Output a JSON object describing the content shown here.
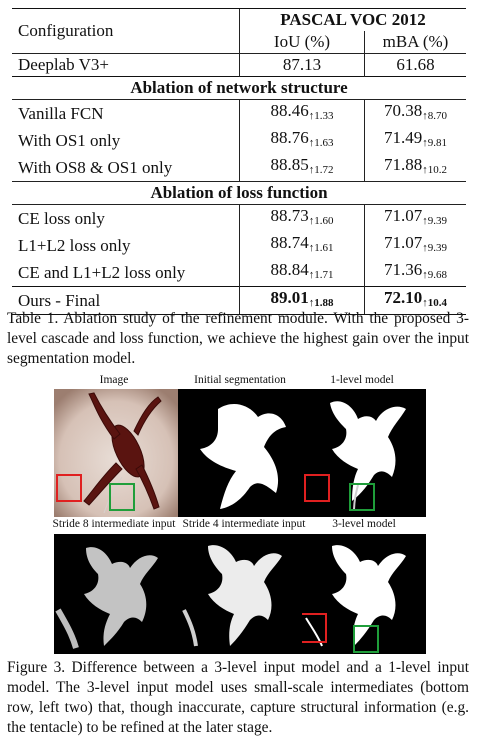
{
  "table": {
    "header": {
      "config": "Configuration",
      "dataset": "PASCAL VOC 2012",
      "iou": "IoU (%)",
      "mba": "mBA (%)"
    },
    "baseline": {
      "name": "Deeplab V3+",
      "iou": "87.13",
      "mba": "61.68"
    },
    "sections": [
      {
        "title": "Ablation of network structure",
        "rows": [
          {
            "name": "Vanilla FCN",
            "iou": "88.46",
            "iou_gain": "↑1.33",
            "mba": "70.38",
            "mba_gain": "↑8.70"
          },
          {
            "name": "With OS1 only",
            "iou": "88.76",
            "iou_gain": "↑1.63",
            "mba": "71.49",
            "mba_gain": "↑9.81"
          },
          {
            "name": "With OS8 & OS1 only",
            "iou": "88.85",
            "iou_gain": "↑1.72",
            "mba": "71.88",
            "mba_gain": "↑10.2"
          }
        ]
      },
      {
        "title": "Ablation of loss function",
        "rows": [
          {
            "name": "CE loss only",
            "iou": "88.73",
            "iou_gain": "↑1.60",
            "mba": "71.07",
            "mba_gain": "↑9.39"
          },
          {
            "name": "L1+L2 loss only",
            "iou": "88.74",
            "iou_gain": "↑1.61",
            "mba": "71.07",
            "mba_gain": "↑9.39"
          },
          {
            "name": "CE and L1+L2 loss only",
            "iou": "88.84",
            "iou_gain": "↑1.71",
            "mba": "71.36",
            "mba_gain": "↑9.68"
          }
        ]
      }
    ],
    "final": {
      "name": "Ours - Final",
      "iou": "89.01",
      "iou_gain": "↑1.88",
      "mba": "72.10",
      "mba_gain": "↑10.4"
    }
  },
  "table_caption": "Table 1. Ablation study of the refinement module. With the proposed 3-level cascade and loss function, we achieve the highest gain over the input segmentation model.",
  "figure": {
    "labels_top": [
      "Image",
      "Initial segmentation",
      "1-level model"
    ],
    "labels_bottom": [
      "Stride 8 intermediate input",
      "Stride 4 intermediate input",
      "3-level model"
    ],
    "box_colors": {
      "red": "#e02020",
      "green": "#1f9e3a"
    }
  },
  "figure_caption": "Figure 3. Difference between a 3-level input model and a 1-level input model. The 3-level input model uses small-scale intermediates (bottom row, left two) that, though inaccurate, capture structural information (e.g. the tentacle) to be refined at the later stage."
}
